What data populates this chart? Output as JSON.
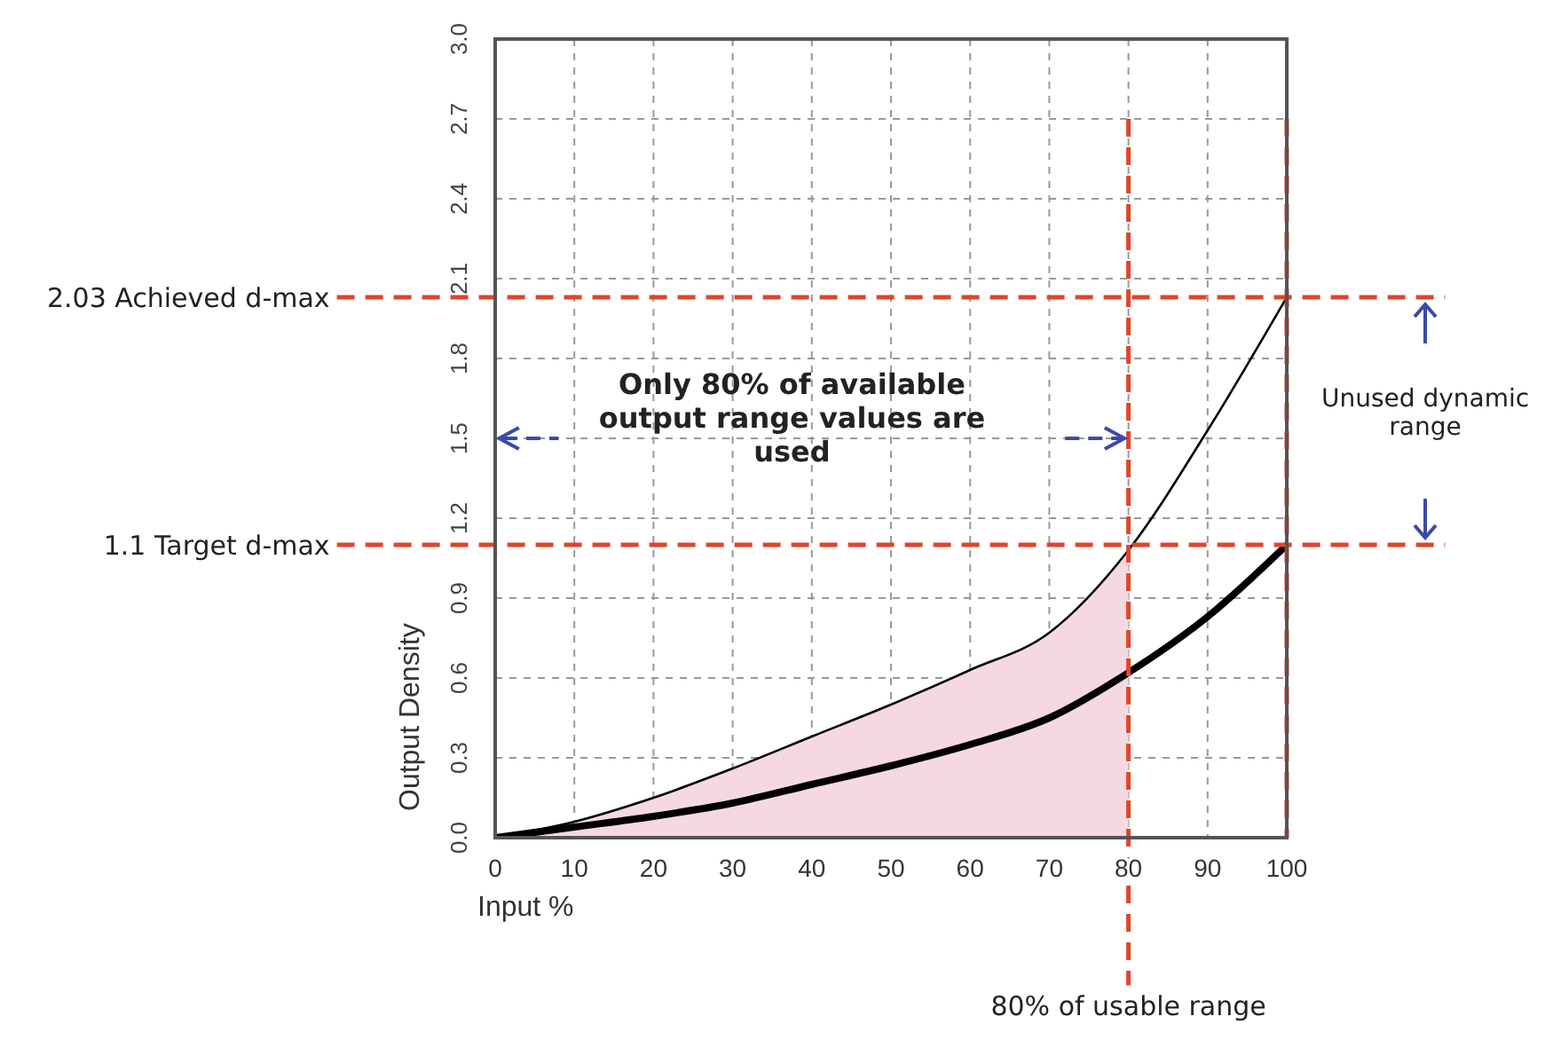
{
  "chart_data": {
    "type": "line",
    "xlabel": "Input %",
    "ylabel": "Output Density",
    "xlim": [
      0,
      100
    ],
    "xticks": [
      0,
      10,
      20,
      30,
      40,
      50,
      60,
      70,
      80,
      90,
      100
    ],
    "ylim": [
      0,
      3.0
    ],
    "yticks": [
      {
        "value": 0,
        "label": "0.0"
      },
      {
        "value": 0.3,
        "label": "0.3"
      },
      {
        "value": 0.6,
        "label": "0.6"
      },
      {
        "value": 0.9,
        "label": "0.9"
      },
      {
        "value": 1.2,
        "label": "1.2"
      },
      {
        "value": 1.5,
        "label": "1.5"
      },
      {
        "value": 1.8,
        "label": "1.8"
      },
      {
        "value": 2.1,
        "label": "2.1"
      },
      {
        "value": 2.4,
        "label": "2.4"
      },
      {
        "value": 2.7,
        "label": "2.7"
      },
      {
        "value": 3.0,
        "label": "3.0"
      }
    ],
    "grid": true,
    "marker": "none",
    "line_style": "solid",
    "series": [
      {
        "type": "area",
        "color": "#f6d9e0",
        "x": [
          0,
          10,
          20,
          30,
          40,
          50,
          60,
          70,
          80
        ],
        "values": [
          0,
          0.06,
          0.15,
          0.26,
          0.38,
          0.5,
          0.63,
          0.77,
          1.08
        ]
      },
      {
        "type": "line",
        "color": "#000000",
        "x": [
          0,
          10,
          20,
          30,
          40,
          50,
          60,
          70,
          80,
          90,
          100
        ],
        "values": [
          0,
          0.06,
          0.15,
          0.26,
          0.38,
          0.5,
          0.63,
          0.77,
          1.08,
          1.53,
          2.03
        ]
      },
      {
        "type": "line",
        "color": "#000000",
        "x": [
          0,
          10,
          20,
          30,
          40,
          50,
          60,
          70,
          80,
          90,
          100
        ],
        "values": [
          0,
          0.04,
          0.08,
          0.13,
          0.2,
          0.27,
          0.35,
          0.45,
          0.62,
          0.83,
          1.1
        ]
      }
    ],
    "ref_lines": [
      {
        "axis": "y",
        "value": 2.03,
        "label": "2.03 Achieved d-max",
        "color": "#e0452a",
        "line_style": "dashed"
      },
      {
        "axis": "y",
        "value": 1.1,
        "label": "1.1 Target d-max",
        "color": "#e0452a",
        "line_style": "dashed"
      },
      {
        "axis": "x",
        "value": 80,
        "label": "80% of usable range",
        "color": "#e0452a",
        "line_style": "dashed"
      },
      {
        "axis": "x",
        "value": 100,
        "label": null,
        "color": "#e0452a",
        "line_style": "dashed"
      }
    ],
    "annotations": [
      "Only 80% of available output range values are used",
      "Unused dynamic range"
    ]
  }
}
